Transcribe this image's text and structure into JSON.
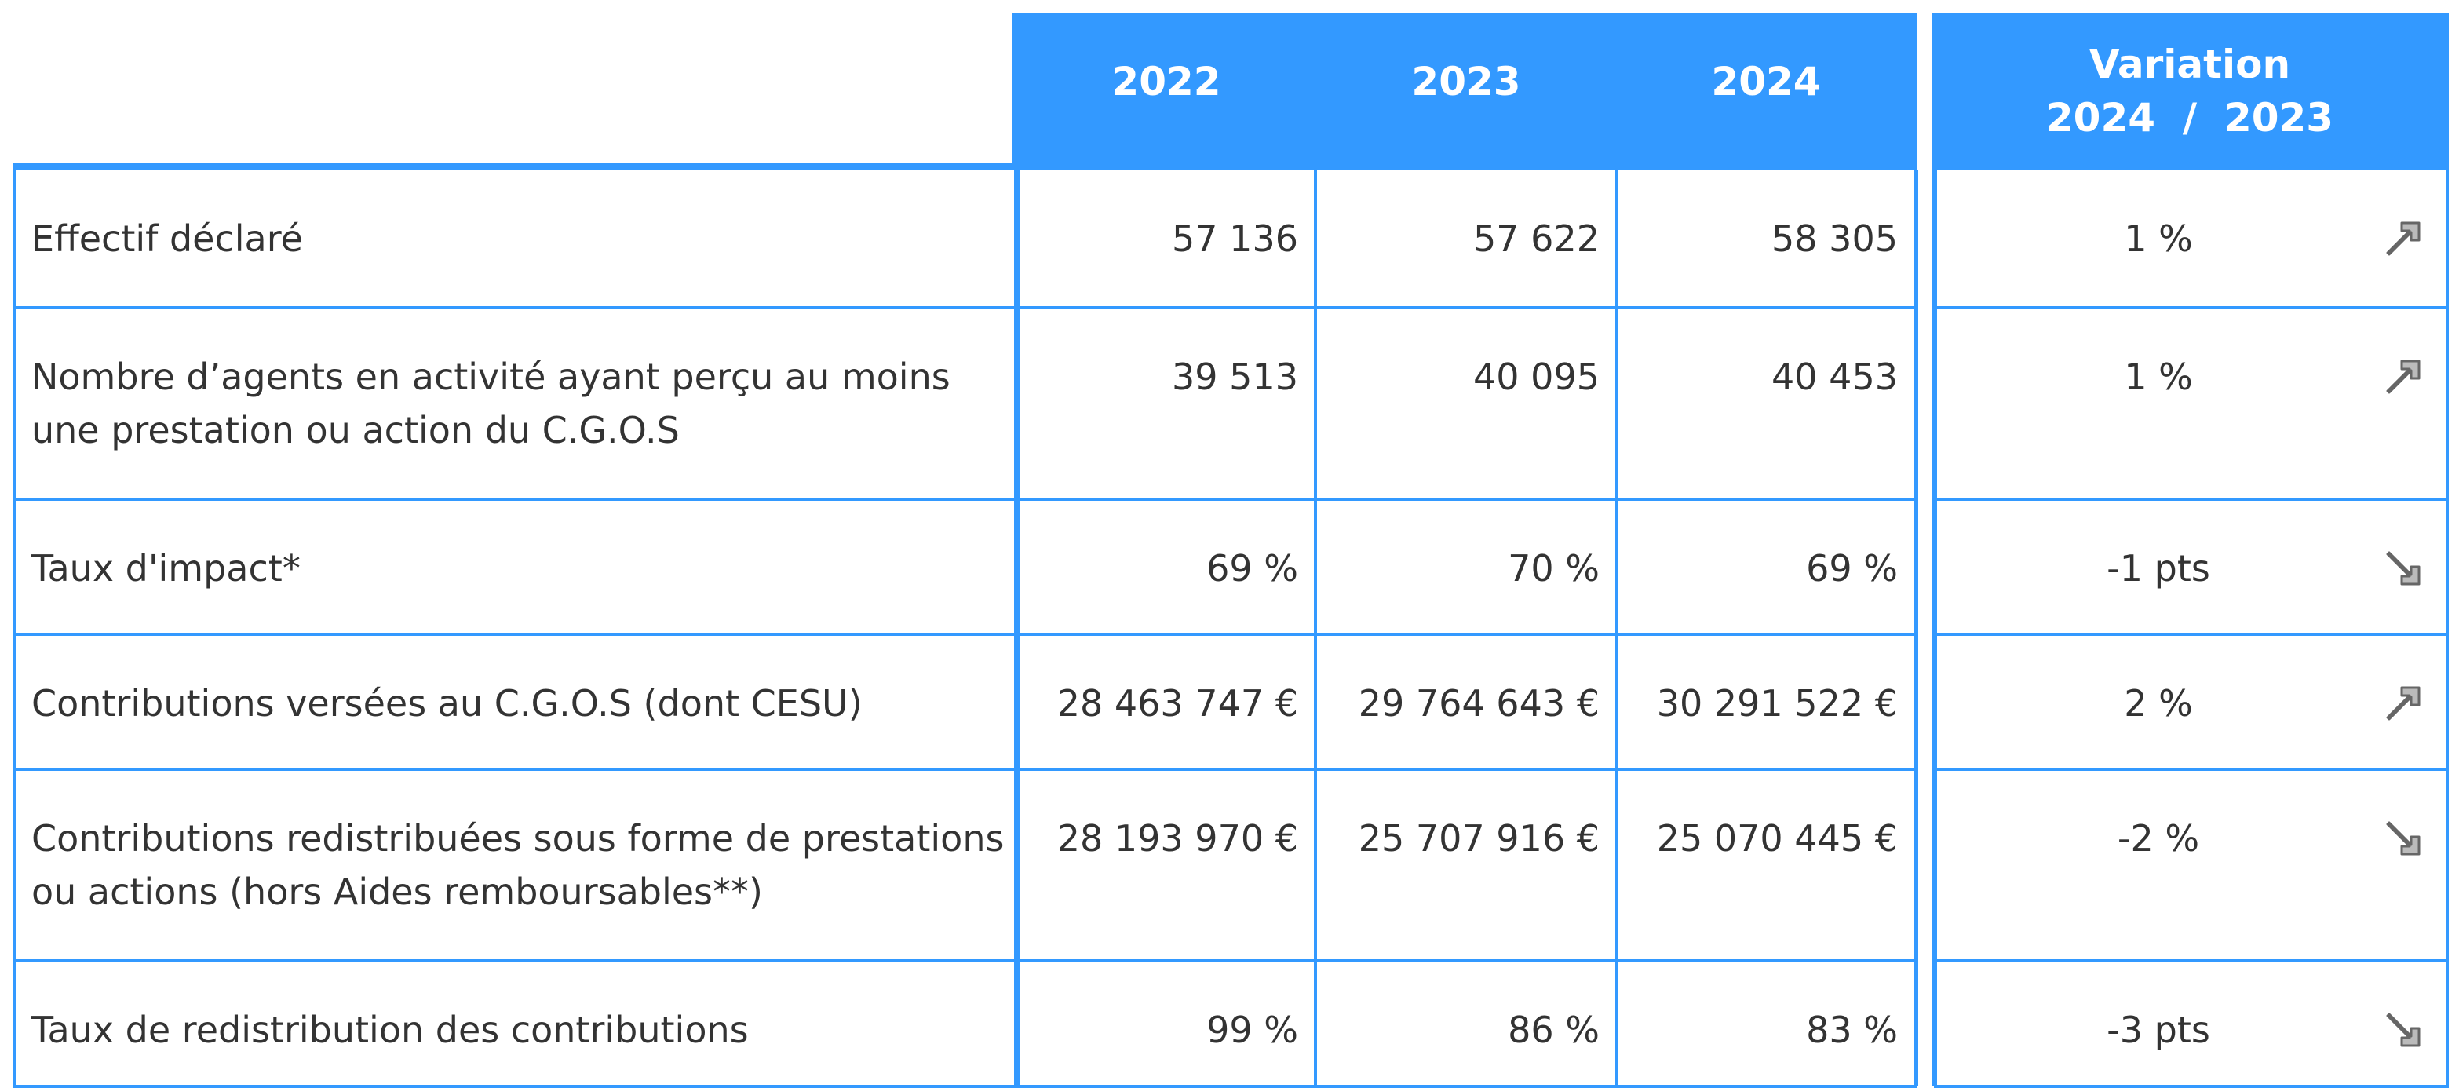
{
  "table": {
    "header": {
      "years": [
        "2022",
        "2023",
        "2024"
      ],
      "variation": [
        "Variation",
        "2024  /  2023"
      ]
    },
    "rows": [
      {
        "label": "Effectif déclaré",
        "values": [
          "57 136",
          "57 622",
          "58 305"
        ],
        "variation": "1 %",
        "trend": "up"
      },
      {
        "label": "Nombre d’agents en activité ayant perçu au moins une prestation ou action du C.G.O.S",
        "values": [
          "39 513",
          "40 095",
          "40 453"
        ],
        "variation": "1 %",
        "trend": "up"
      },
      {
        "label": "Taux d'impact*",
        "values": [
          "69 %",
          "70 %",
          "69 %"
        ],
        "variation": "-1 pts",
        "trend": "down"
      },
      {
        "label": "Contributions versées au C.G.O.S (dont CESU)",
        "values": [
          "28 463 747 €",
          "29 764 643 €",
          "30 291 522 €"
        ],
        "variation": "2 %",
        "trend": "up"
      },
      {
        "label": "Contributions redistribuées sous forme de prestations ou actions (hors Aides remboursables**)",
        "values": [
          "28 193 970 €",
          "25 707 916 €",
          "25 070 445 €"
        ],
        "variation": "-2 %",
        "trend": "down"
      },
      {
        "label": "Taux de redistribution des contributions",
        "values": [
          "99 %",
          "86 %",
          "83 %"
        ],
        "variation": "-3 pts",
        "trend": "down"
      }
    ]
  }
}
